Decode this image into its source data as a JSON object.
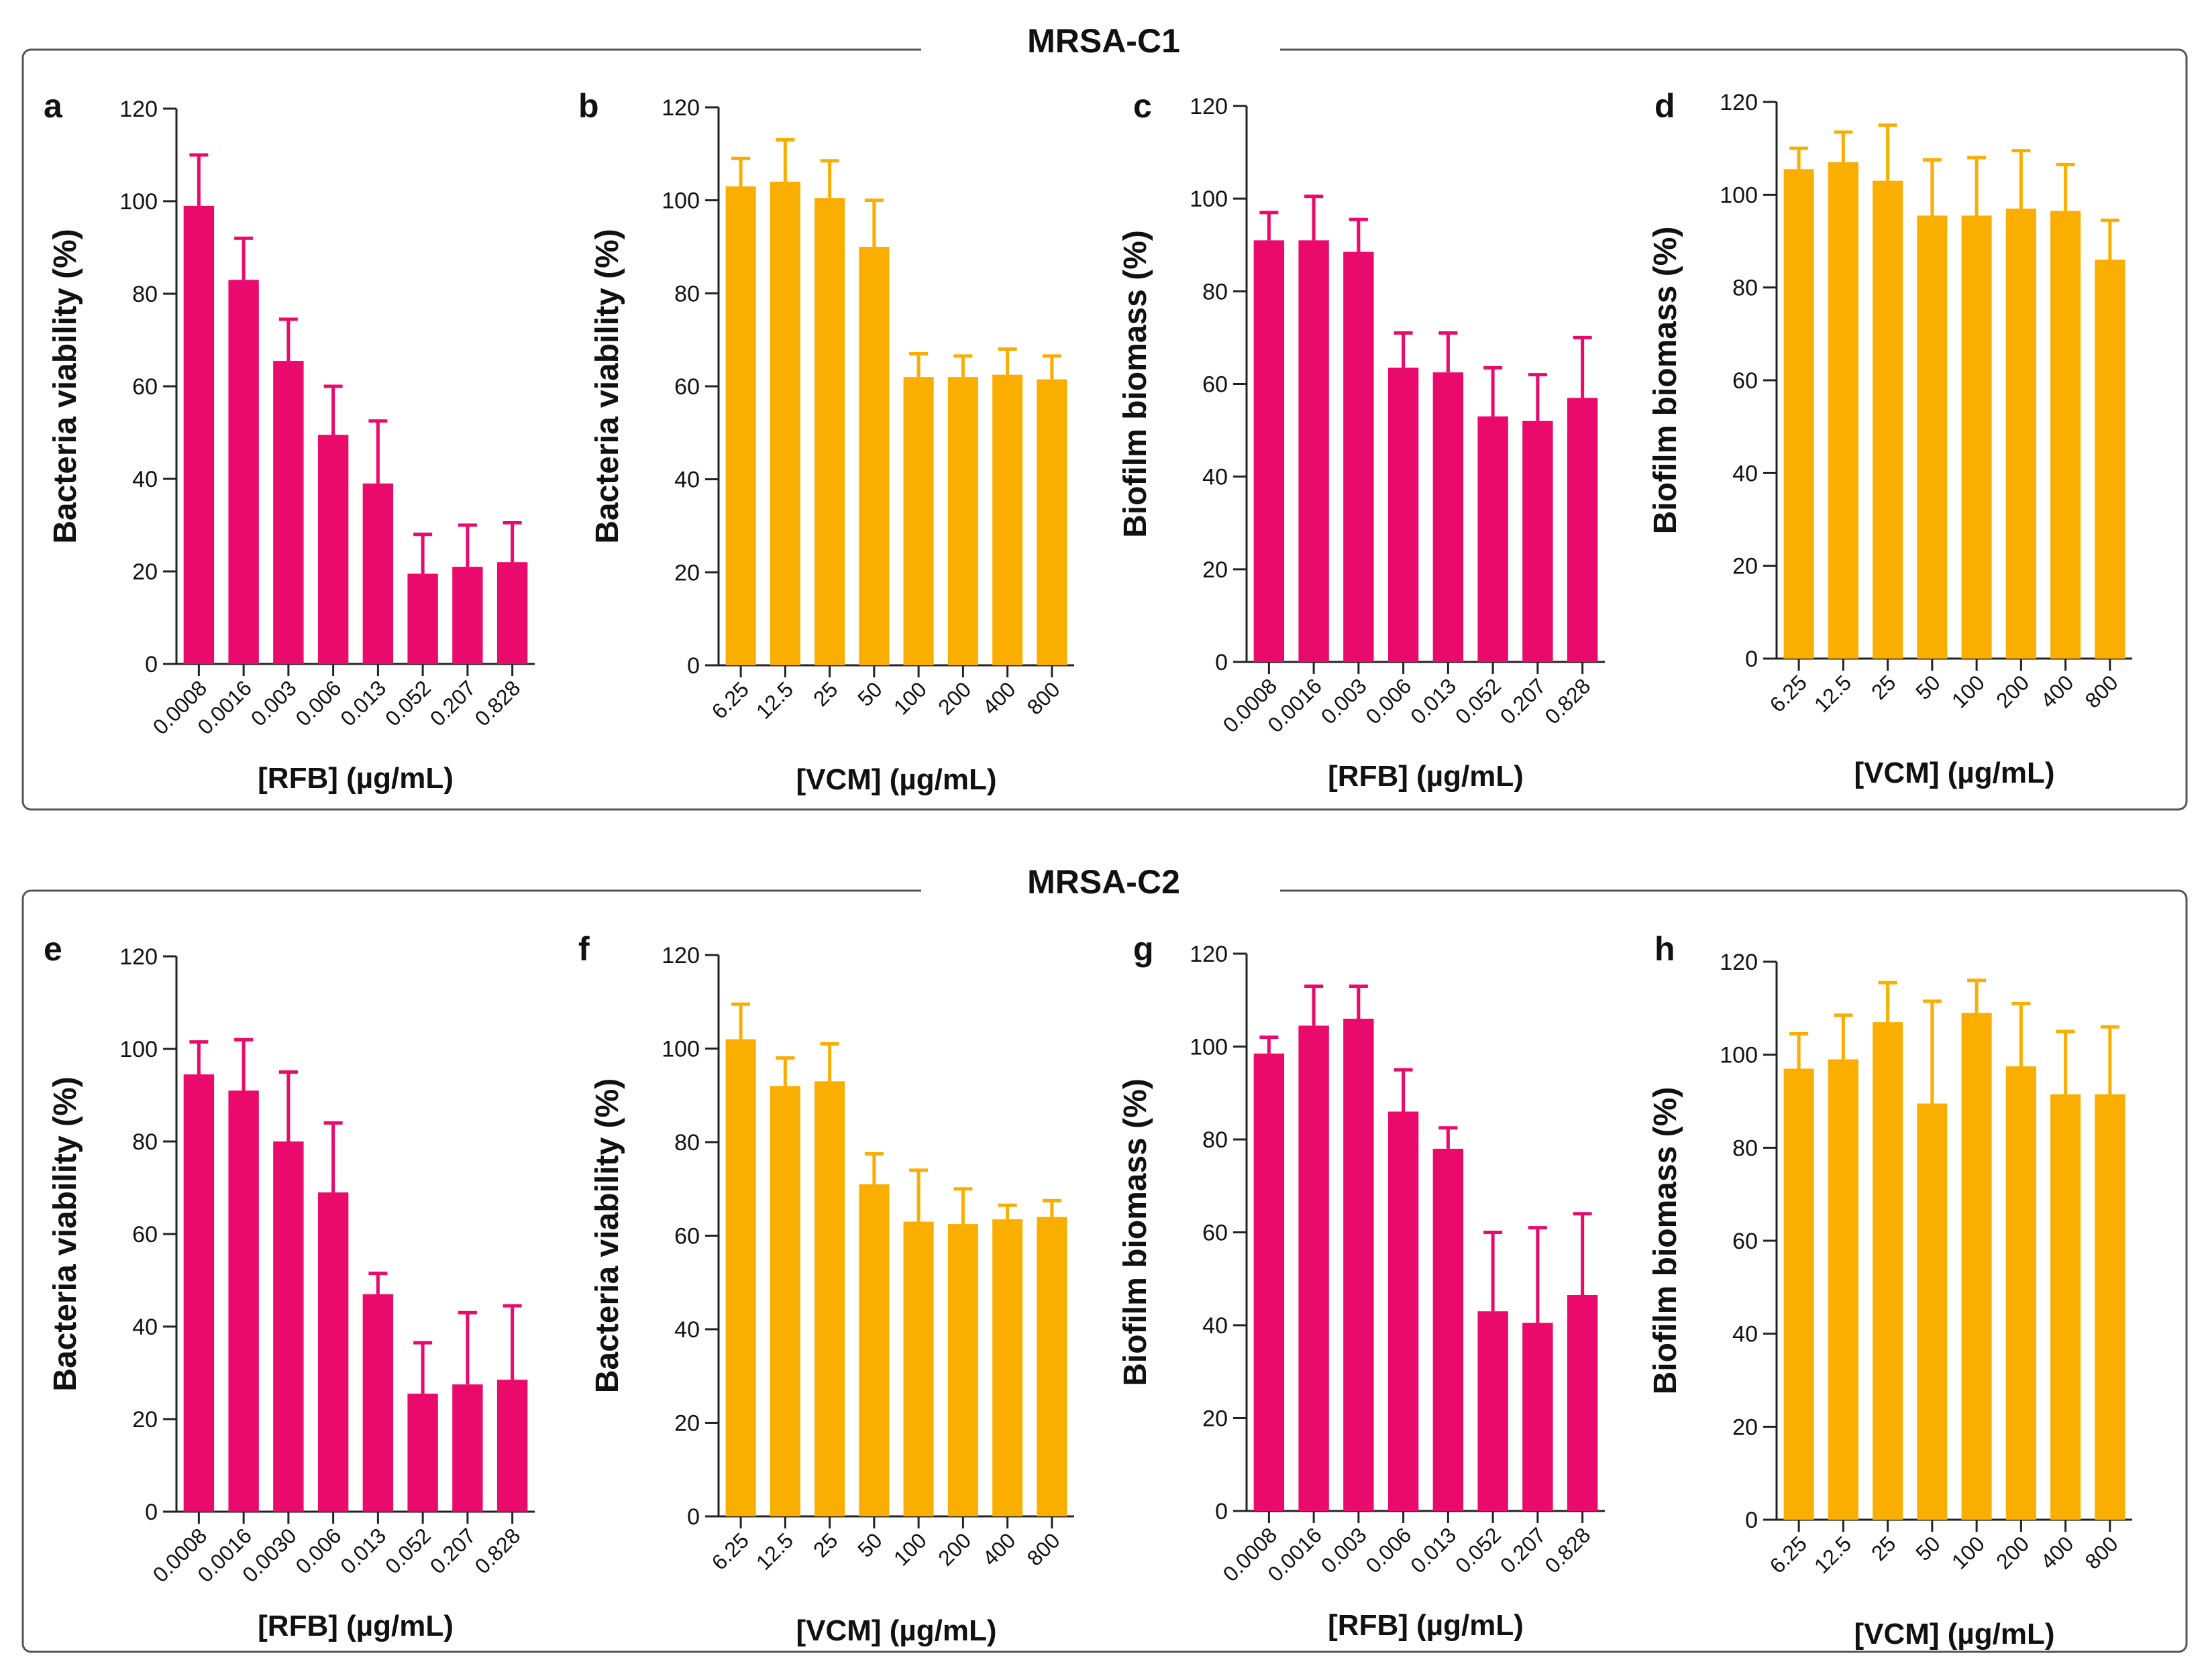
{
  "groups": [
    {
      "title": "MRSA-C1"
    },
    {
      "title": "MRSA-C2"
    }
  ],
  "colors": {
    "rfb": "#ea0a6b",
    "vcm": "#f9ae00",
    "frame": "#555555",
    "axis": "#222222"
  },
  "chart_data": [
    {
      "panel": "a",
      "group": "MRSA-C1",
      "type": "bar",
      "color": "rfb",
      "ylabel": "Bacteria viability (%)",
      "xlabel": "[RFB] (µg/mL)",
      "ylim": [
        0,
        120
      ],
      "yticks": [
        0,
        20,
        40,
        60,
        80,
        100,
        120
      ],
      "categories": [
        "0.0008",
        "0.0016",
        "0.003",
        "0.006",
        "0.013",
        "0.052",
        "0.207",
        "0.828"
      ],
      "values": [
        99,
        83,
        65.5,
        49.5,
        39,
        19.5,
        21,
        22
      ],
      "errors": [
        11,
        9,
        9,
        10.5,
        13.5,
        8.5,
        9,
        8.5
      ]
    },
    {
      "panel": "b",
      "group": "MRSA-C1",
      "type": "bar",
      "color": "vcm",
      "ylabel": "Bacteria viability (%)",
      "xlabel": "[VCM] (µg/mL)",
      "ylim": [
        0,
        120
      ],
      "yticks": [
        0,
        20,
        40,
        60,
        80,
        100,
        120
      ],
      "categories": [
        "6.25",
        "12.5",
        "25",
        "50",
        "100",
        "200",
        "400",
        "800"
      ],
      "values": [
        103,
        104,
        100.5,
        90,
        62,
        62,
        62.5,
        61.5
      ],
      "errors": [
        6,
        9,
        8,
        10,
        5,
        4.5,
        5.5,
        5
      ]
    },
    {
      "panel": "c",
      "group": "MRSA-C1",
      "type": "bar",
      "color": "rfb",
      "ylabel": "Biofilm biomass (%)",
      "xlabel": "[RFB] (µg/mL)",
      "ylim": [
        0,
        120
      ],
      "yticks": [
        0,
        20,
        40,
        60,
        80,
        100,
        120
      ],
      "categories": [
        "0.0008",
        "0.0016",
        "0.003",
        "0.006",
        "0.013",
        "0.052",
        "0.207",
        "0.828"
      ],
      "values": [
        91,
        91,
        88.5,
        63.5,
        62.5,
        53,
        52,
        57
      ],
      "errors": [
        6,
        9.5,
        7,
        7.5,
        8.5,
        10.5,
        10,
        13
      ]
    },
    {
      "panel": "d",
      "group": "MRSA-C1",
      "type": "bar",
      "color": "vcm",
      "ylabel": "Biofilm biomass (%)",
      "xlabel": "[VCM] (µg/mL)",
      "ylim": [
        0,
        120
      ],
      "yticks": [
        0,
        20,
        40,
        60,
        80,
        100,
        120
      ],
      "categories": [
        "6.25",
        "12.5",
        "25",
        "50",
        "100",
        "200",
        "400",
        "800"
      ],
      "values": [
        105.5,
        107,
        103,
        95.5,
        95.5,
        97,
        96.5,
        86
      ],
      "errors": [
        4.5,
        6.5,
        12,
        12,
        12.5,
        12.5,
        10,
        8.5
      ]
    },
    {
      "panel": "e",
      "group": "MRSA-C2",
      "type": "bar",
      "color": "rfb",
      "ylabel": "Bacteria viability (%)",
      "xlabel": "[RFB] (µg/mL)",
      "ylim": [
        0,
        120
      ],
      "yticks": [
        0,
        20,
        40,
        60,
        80,
        100,
        120
      ],
      "categories": [
        "0.0008",
        "0.0016",
        "0.0030",
        "0.006",
        "0.013",
        "0.052",
        "0.207",
        "0.828"
      ],
      "values": [
        94.5,
        91,
        80,
        69,
        47,
        25.5,
        27.5,
        28.5
      ],
      "errors": [
        7,
        11,
        15,
        15,
        4.5,
        11,
        15.5,
        16
      ]
    },
    {
      "panel": "f",
      "group": "MRSA-C2",
      "type": "bar",
      "color": "vcm",
      "ylabel": "Bacteria viability (%)",
      "xlabel": "[VCM] (µg/mL)",
      "ylim": [
        0,
        120
      ],
      "yticks": [
        0,
        20,
        40,
        60,
        80,
        100,
        120
      ],
      "categories": [
        "6.25",
        "12.5",
        "25",
        "50",
        "100",
        "200",
        "400",
        "800"
      ],
      "values": [
        102,
        92,
        93,
        71,
        63,
        62.5,
        63.5,
        64
      ],
      "errors": [
        7.5,
        6,
        8,
        6.5,
        11,
        7.5,
        3,
        3.5
      ]
    },
    {
      "panel": "g",
      "group": "MRSA-C2",
      "type": "bar",
      "color": "rfb",
      "ylabel": "Biofilm biomass (%)",
      "xlabel": "[RFB] (µg/mL)",
      "ylim": [
        0,
        120
      ],
      "yticks": [
        0,
        20,
        40,
        60,
        80,
        100,
        120
      ],
      "categories": [
        "0.0008",
        "0.0016",
        "0.003",
        "0.006",
        "0.013",
        "0.052",
        "0.207",
        "0.828"
      ],
      "values": [
        98.5,
        104.5,
        106,
        86,
        78,
        43,
        40.5,
        46.5
      ],
      "errors": [
        3.5,
        8.5,
        7,
        9,
        4.5,
        17,
        20.5,
        17.5
      ]
    },
    {
      "panel": "h",
      "group": "MRSA-C2",
      "type": "bar",
      "color": "vcm",
      "ylabel": "Biofilm biomass (%)",
      "xlabel": "[VCM] (µg/mL)",
      "ylim": [
        0,
        120
      ],
      "yticks": [
        0,
        20,
        40,
        60,
        80,
        100,
        120
      ],
      "categories": [
        "6.25",
        "12.5",
        "25",
        "50",
        "100",
        "200",
        "400",
        "800"
      ],
      "values": [
        97,
        99,
        107,
        89.5,
        109,
        97.5,
        91.5,
        91.5
      ],
      "errors": [
        7.5,
        9.5,
        8.5,
        22,
        7,
        13.5,
        13.5,
        14.5
      ]
    }
  ]
}
